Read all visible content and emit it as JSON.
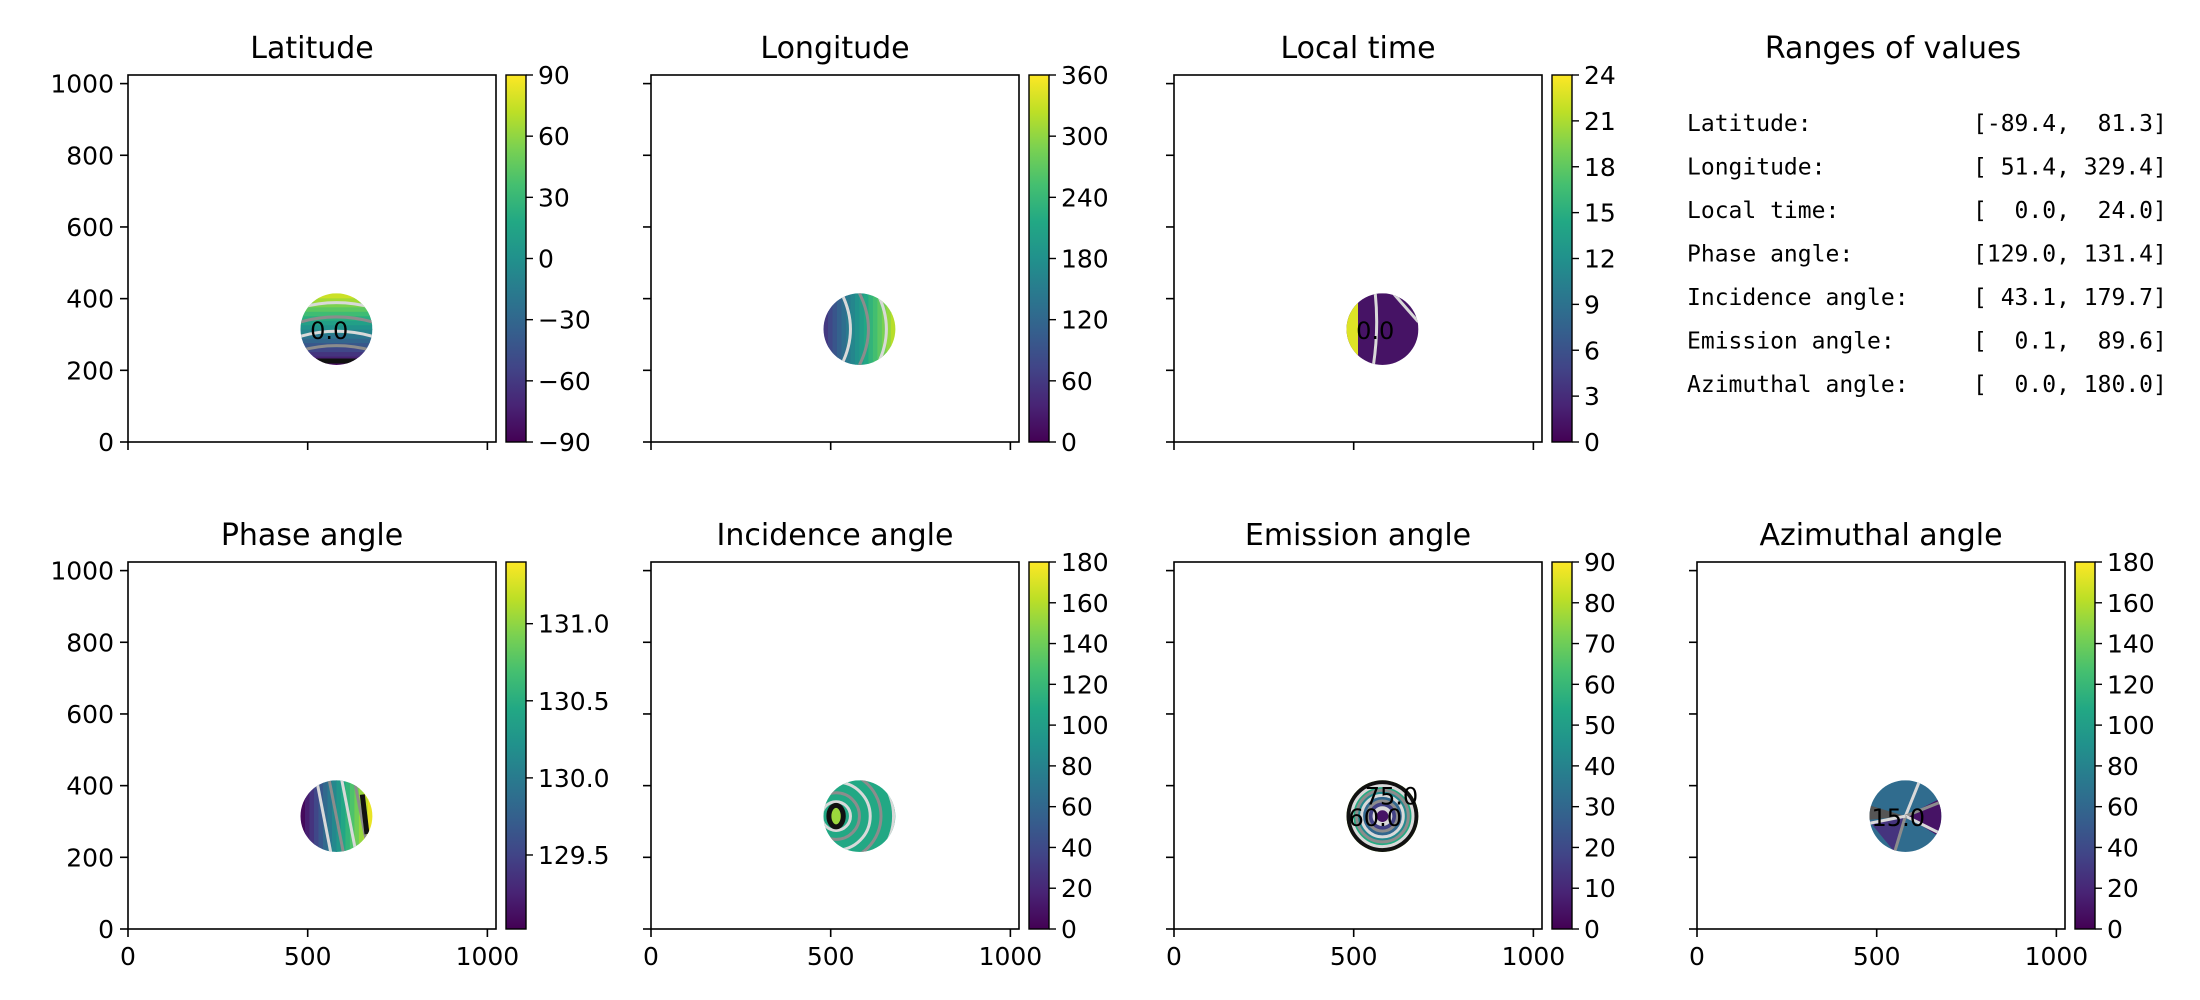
{
  "figure_title": "",
  "colors": {
    "viridis": [
      "#440154",
      "#482475",
      "#414487",
      "#355f8d",
      "#2a788e",
      "#21918c",
      "#22a884",
      "#44bf70",
      "#7ad151",
      "#bddf26",
      "#fde725"
    ],
    "contour_light": "#d9d9d9",
    "contour_gray": "#8c8c8c",
    "contour_dark": "#111111",
    "axis": "#000000"
  },
  "chart_data": [
    {
      "type": "heatmap",
      "id": "latitude",
      "title": "Latitude",
      "xlim": [
        0,
        1024
      ],
      "ylim": [
        0,
        1024
      ],
      "xticks": [
        0,
        500,
        1000
      ],
      "yticks": [
        0,
        200,
        400,
        600,
        800,
        1000
      ],
      "show_xtick_labels": false,
      "show_ytick_labels": true,
      "disk": {
        "cx": 580,
        "cy": 315,
        "r": 100
      },
      "value_range": [
        -89.4,
        81.3
      ],
      "colorbar": {
        "min": -90,
        "max": 90,
        "ticks": [
          90,
          60,
          30,
          0,
          -30,
          -60,
          -90
        ],
        "tick_labels": [
          "90",
          "60",
          "30",
          "0",
          "−30",
          "−60",
          "−90"
        ]
      },
      "contour_labels": [
        "0.0"
      ]
    },
    {
      "type": "heatmap",
      "id": "longitude",
      "title": "Longitude",
      "xlim": [
        0,
        1024
      ],
      "ylim": [
        0,
        1024
      ],
      "xticks": [
        0,
        500,
        1000
      ],
      "yticks": [
        0,
        200,
        400,
        600,
        800,
        1000
      ],
      "show_xtick_labels": false,
      "show_ytick_labels": false,
      "disk": {
        "cx": 580,
        "cy": 315,
        "r": 100
      },
      "value_range": [
        51.4,
        329.4
      ],
      "colorbar": {
        "min": 0,
        "max": 360,
        "ticks": [
          360,
          300,
          240,
          180,
          120,
          60,
          0
        ],
        "tick_labels": [
          "360",
          "300",
          "240",
          "180",
          "120",
          "60",
          "0"
        ]
      },
      "contour_labels": []
    },
    {
      "type": "heatmap",
      "id": "local_time",
      "title": "Local time",
      "xlim": [
        0,
        1024
      ],
      "ylim": [
        0,
        1024
      ],
      "xticks": [
        0,
        500,
        1000
      ],
      "yticks": [
        0,
        200,
        400,
        600,
        800,
        1000
      ],
      "show_xtick_labels": false,
      "show_ytick_labels": false,
      "disk": {
        "cx": 580,
        "cy": 315,
        "r": 100
      },
      "value_range": [
        0.0,
        24.0
      ],
      "colorbar": {
        "min": 0,
        "max": 24,
        "ticks": [
          24,
          21,
          18,
          15,
          12,
          9,
          6,
          3,
          0
        ],
        "tick_labels": [
          "24",
          "21",
          "18",
          "15",
          "12",
          "9",
          "6",
          "3",
          "0"
        ]
      },
      "contour_labels": [
        "0.0"
      ]
    },
    {
      "type": "heatmap",
      "id": "phase_angle",
      "title": "Phase angle",
      "xlim": [
        0,
        1024
      ],
      "ylim": [
        0,
        1024
      ],
      "xticks": [
        0,
        500,
        1000
      ],
      "yticks": [
        0,
        200,
        400,
        600,
        800,
        1000
      ],
      "show_xtick_labels": true,
      "show_ytick_labels": true,
      "disk": {
        "cx": 580,
        "cy": 315,
        "r": 100
      },
      "value_range": [
        129.0,
        131.4
      ],
      "colorbar": {
        "min": 129.02,
        "max": 131.4,
        "ticks": [
          131.0,
          130.5,
          130.0,
          129.5
        ],
        "tick_labels": [
          "131.0",
          "130.5",
          "130.0",
          "129.5"
        ]
      },
      "contour_labels": []
    },
    {
      "type": "heatmap",
      "id": "incidence_angle",
      "title": "Incidence angle",
      "xlim": [
        0,
        1024
      ],
      "ylim": [
        0,
        1024
      ],
      "xticks": [
        0,
        500,
        1000
      ],
      "yticks": [
        0,
        200,
        400,
        600,
        800,
        1000
      ],
      "show_xtick_labels": true,
      "show_ytick_labels": false,
      "disk": {
        "cx": 580,
        "cy": 315,
        "r": 100
      },
      "value_range": [
        43.1,
        179.7
      ],
      "colorbar": {
        "min": 0,
        "max": 180,
        "ticks": [
          180,
          160,
          140,
          120,
          100,
          80,
          60,
          40,
          20,
          0
        ],
        "tick_labels": [
          "180",
          "160",
          "140",
          "120",
          "100",
          "80",
          "60",
          "40",
          "20",
          "0"
        ]
      },
      "contour_labels": []
    },
    {
      "type": "heatmap",
      "id": "emission_angle",
      "title": "Emission angle",
      "xlim": [
        0,
        1024
      ],
      "ylim": [
        0,
        1024
      ],
      "xticks": [
        0,
        500,
        1000
      ],
      "yticks": [
        0,
        200,
        400,
        600,
        800,
        1000
      ],
      "show_xtick_labels": true,
      "show_ytick_labels": false,
      "disk": {
        "cx": 580,
        "cy": 315,
        "r": 100
      },
      "value_range": [
        0.1,
        89.6
      ],
      "colorbar": {
        "min": 0,
        "max": 90,
        "ticks": [
          90,
          80,
          70,
          60,
          50,
          40,
          30,
          20,
          10,
          0
        ],
        "tick_labels": [
          "90",
          "80",
          "70",
          "60",
          "50",
          "40",
          "30",
          "20",
          "10",
          "0"
        ]
      },
      "contour_labels": [
        "60.0",
        "75.0"
      ]
    },
    {
      "type": "heatmap",
      "id": "azimuthal_angle",
      "title": "Azimuthal angle",
      "xlim": [
        0,
        1024
      ],
      "ylim": [
        0,
        1024
      ],
      "xticks": [
        0,
        500,
        1000
      ],
      "yticks": [
        0,
        200,
        400,
        600,
        800,
        1000
      ],
      "show_xtick_labels": true,
      "show_ytick_labels": false,
      "disk": {
        "cx": 580,
        "cy": 315,
        "r": 100
      },
      "value_range": [
        0.0,
        180.0
      ],
      "colorbar": {
        "min": 0,
        "max": 180,
        "ticks": [
          180,
          160,
          140,
          120,
          100,
          80,
          60,
          40,
          20,
          0
        ],
        "tick_labels": [
          "180",
          "160",
          "140",
          "120",
          "100",
          "80",
          "60",
          "40",
          "20",
          "0"
        ]
      },
      "contour_labels": [
        "15.0"
      ]
    },
    {
      "type": "table",
      "id": "ranges",
      "title": "Ranges of values",
      "rows": [
        {
          "name": "Latitude:",
          "range": "[-89.4,  81.3]"
        },
        {
          "name": "Longitude:",
          "range": "[ 51.4, 329.4]"
        },
        {
          "name": "Local time:",
          "range": "[  0.0,  24.0]"
        },
        {
          "name": "Phase angle:",
          "range": "[129.0, 131.4]"
        },
        {
          "name": "Incidence angle:",
          "range": "[ 43.1, 179.7]"
        },
        {
          "name": "Emission angle:",
          "range": "[  0.1,  89.6]"
        },
        {
          "name": "Azimuthal angle:",
          "range": "[  0.0, 180.0]"
        }
      ]
    }
  ]
}
